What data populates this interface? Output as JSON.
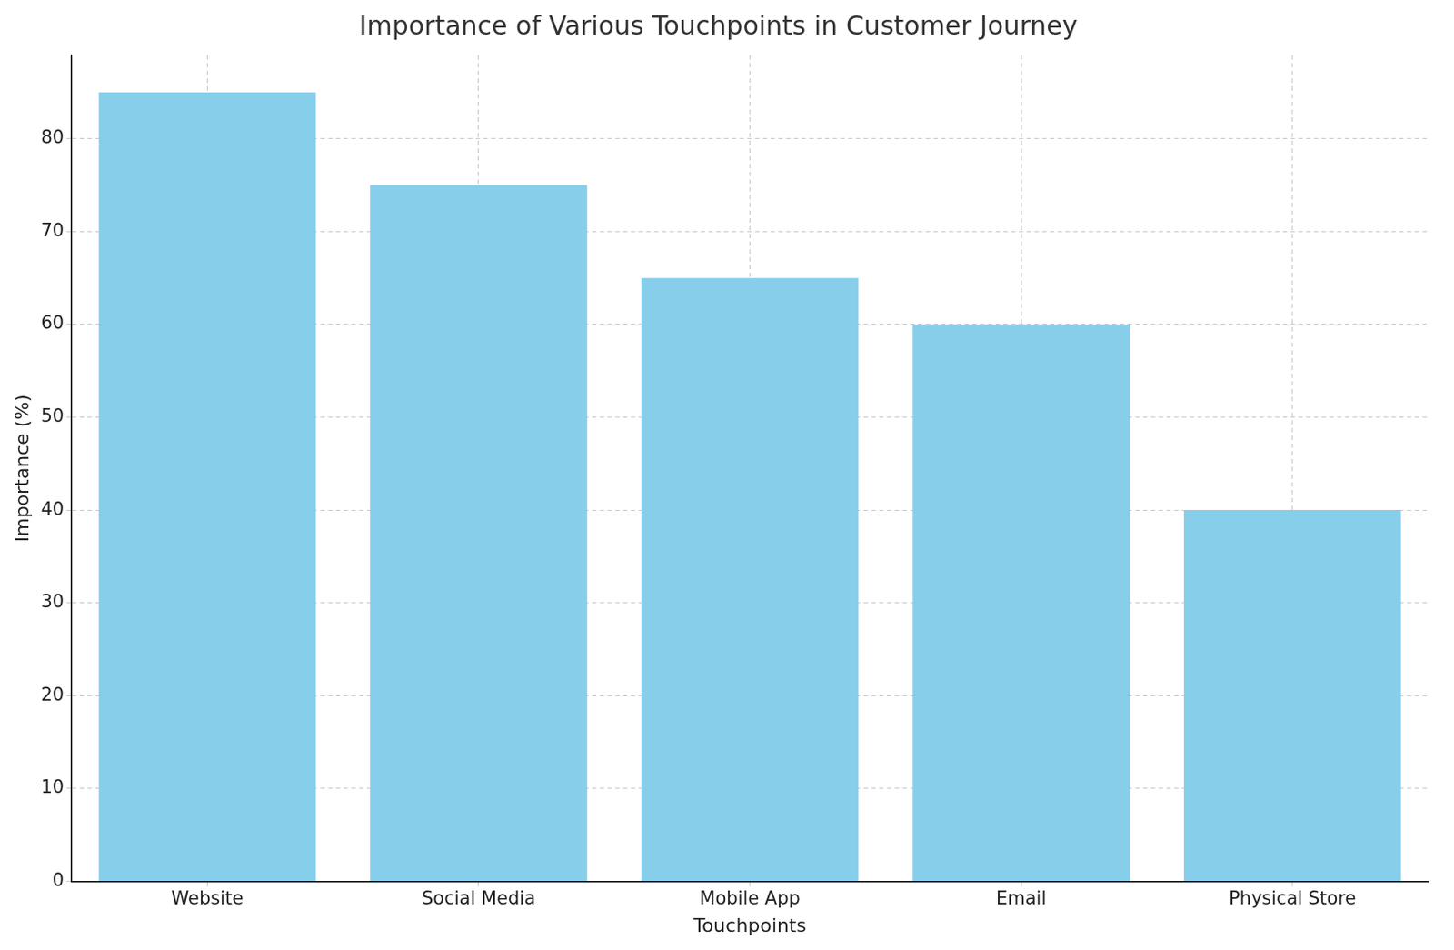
{
  "chart_data": {
    "type": "bar",
    "title": "Importance of Various Touchpoints in Customer Journey",
    "x_label": "Touchpoints",
    "y_label": "Importance (%)",
    "categories": [
      "Website",
      "Social Media",
      "Mobile App",
      "Email",
      "Physical Store"
    ],
    "values": [
      85,
      75,
      65,
      60,
      40
    ],
    "color": "#87ceeb",
    "ylim": [
      0,
      89
    ],
    "yticks": [
      0,
      10,
      20,
      30,
      40,
      50,
      60,
      70,
      80
    ],
    "grid": true
  }
}
